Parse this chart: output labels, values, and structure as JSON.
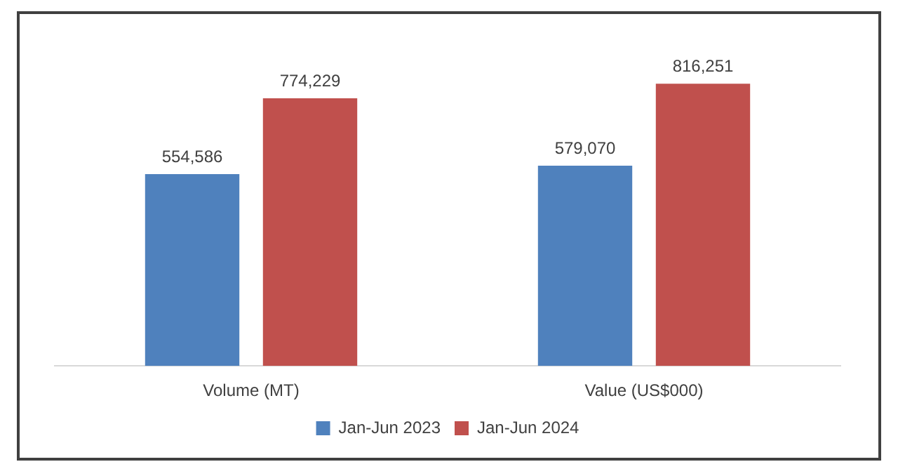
{
  "chart_data": {
    "type": "bar",
    "categories": [
      "Volume (MT)",
      "Value (US$000)"
    ],
    "series": [
      {
        "name": "Jan-Jun 2023",
        "color": "#4f81bd",
        "values": [
          554586,
          579070
        ],
        "value_labels": [
          "554,586",
          "579,070"
        ]
      },
      {
        "name": "Jan-Jun 2024",
        "color": "#c0504d",
        "values": [
          774229,
          816251
        ],
        "value_labels": [
          "774,229",
          "816,251"
        ]
      }
    ],
    "legend": "bottom",
    "tick_labels": "x"
  }
}
